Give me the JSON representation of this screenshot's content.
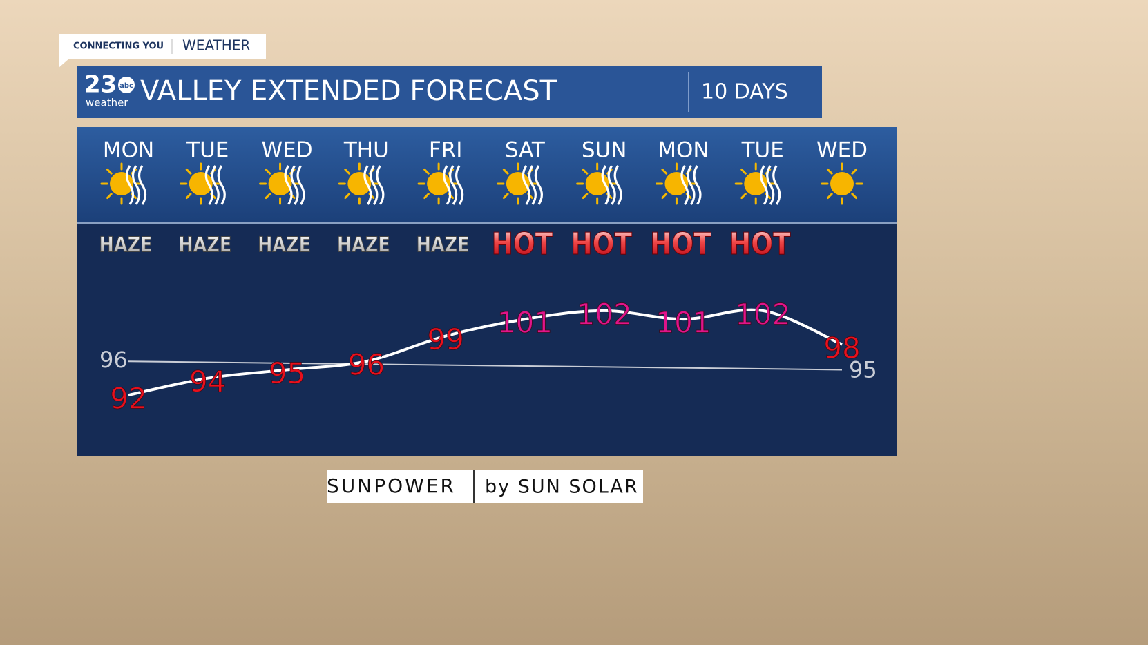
{
  "brand": {
    "tag": "CONNECTING YOU",
    "section": "WEATHER",
    "logo_number": "23",
    "logo_network": "abc",
    "logo_sub": "weather"
  },
  "header": {
    "title": "VALLEY EXTENDED FORECAST",
    "range": "10 DAYS"
  },
  "sponsor": {
    "name": "SUNPOWER",
    "by": "by SUN SOLAR"
  },
  "chart_data": {
    "type": "line",
    "categories": [
      "MON",
      "TUE",
      "WED",
      "THU",
      "FRI",
      "SAT",
      "SUN",
      "MON",
      "TUE",
      "WED"
    ],
    "conditions": [
      "HAZE",
      "HAZE",
      "HAZE",
      "HAZE",
      "HAZE",
      "HOT",
      "HOT",
      "HOT",
      "HOT",
      null
    ],
    "series": [
      {
        "color": "#ffffff",
        "values": [
          92,
          94,
          95,
          96,
          99,
          101,
          102,
          101,
          102,
          98
        ],
        "label_colors": [
          "#e8101c",
          "#e8101c",
          "#e8101c",
          "#e8101c",
          "#e8101c",
          "#e0148a",
          "#e0148a",
          "#e0148a",
          "#e0148a",
          "#e8101c"
        ]
      }
    ],
    "normal": {
      "start": 96,
      "end": 95,
      "color": "#c9cdd6"
    },
    "ylim": [
      88,
      106
    ]
  }
}
